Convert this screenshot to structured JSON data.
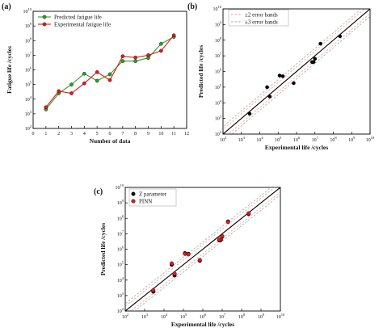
{
  "chart_data": [
    {
      "panel_label": "(a)",
      "type": "line",
      "xlabel": "Number of data",
      "ylabel": "Fatigue life /cycles",
      "xlim": [
        0,
        12
      ],
      "xticks": [
        0,
        1,
        2,
        3,
        4,
        5,
        6,
        7,
        8,
        9,
        10,
        11,
        12
      ],
      "ylim_exp": [
        2,
        10
      ],
      "ytick_labels": [
        "10^2",
        "10^3",
        "10^4",
        "10^5",
        "10^6",
        "10^7",
        "10^8",
        "10^9",
        "10^10"
      ],
      "yscale": "log",
      "legend_position": "top-left",
      "colors": {
        "pred": "#2ca02c",
        "exp": "#e31a1c"
      },
      "x": [
        1,
        2,
        3,
        4,
        5,
        6,
        7,
        8,
        9,
        10,
        11
      ],
      "series": [
        {
          "name": "Predicted fatigue life",
          "y": [
            2000.0,
            25000.0,
            100000.0,
            550000.0,
            180000.0,
            500000.0,
            4000000.0,
            4000000.0,
            6500000.0,
            60000000.0,
            180000000.0
          ]
        },
        {
          "name": "Experimental fatigue life",
          "y": [
            2800.0,
            35000.0,
            25000.0,
            120000.0,
            700000.0,
            200000.0,
            8500000.0,
            7000000.0,
            10000000.0,
            20000000.0,
            230000000.0
          ]
        }
      ]
    },
    {
      "panel_label": "(b)",
      "type": "scatter",
      "xlabel": "Experimental life /cycles",
      "ylabel": "Predicted life /cycles",
      "xlim_exp": [
        2,
        10
      ],
      "ylim_exp": [
        2,
        10
      ],
      "scale": "log",
      "legend_position": "top-left",
      "legend": [
        "±2 error bands",
        "±3 error bands"
      ],
      "colors": {
        "band2": "#e8a0a0",
        "band3": "#a6a6a6",
        "points": "#000000"
      },
      "points": [
        [
          2800.0,
          2000.0
        ],
        [
          35000.0,
          25000.0
        ],
        [
          25000.0,
          100000.0
        ],
        [
          120000.0,
          550000.0
        ],
        [
          180000.0,
          500000.0
        ],
        [
          700000.0,
          180000.0
        ],
        [
          8500000.0,
          4000000.0
        ],
        [
          7000000.0,
          4000000.0
        ],
        [
          10000000.0,
          6500000.0
        ],
        [
          20000000.0,
          60000000.0
        ],
        [
          230000000.0,
          180000000.0
        ]
      ]
    },
    {
      "panel_label": "(c)",
      "type": "scatter",
      "xlabel": "Experimental life /cycles",
      "ylabel": "Predicted life /cycles",
      "xlim_exp": [
        2,
        10
      ],
      "ylim_exp": [
        2,
        10
      ],
      "scale": "log",
      "legend_position": "top-left",
      "colors": {
        "z": "#000000",
        "pinn": "#e31a1c"
      },
      "series": [
        {
          "name": "Z parameter",
          "points": [
            [
              2800.0,
              1800.0
            ],
            [
              35000.0,
              20000.0
            ],
            [
              25000.0,
              100000.0
            ],
            [
              120000.0,
              550000.0
            ],
            [
              180000.0,
              500000.0
            ],
            [
              700000.0,
              180000.0
            ],
            [
              8500000.0,
              4000000.0
            ],
            [
              7000000.0,
              3800000.0
            ],
            [
              10000000.0,
              6500000.0
            ],
            [
              20000000.0,
              62000000.0
            ],
            [
              230000000.0,
              190000000.0
            ]
          ]
        },
        {
          "name": "PINN",
          "points": [
            [
              2800.0,
              2200.0
            ],
            [
              35000.0,
              26000.0
            ],
            [
              25000.0,
              120000.0
            ],
            [
              120000.0,
              500000.0
            ],
            [
              180000.0,
              460000.0
            ],
            [
              700000.0,
              200000.0
            ],
            [
              8500000.0,
              4400000.0
            ],
            [
              7000000.0,
              4200000.0
            ],
            [
              10000000.0,
              7000000.0
            ],
            [
              20000000.0,
              58000000.0
            ],
            [
              230000000.0,
              210000000.0
            ]
          ]
        }
      ]
    }
  ]
}
